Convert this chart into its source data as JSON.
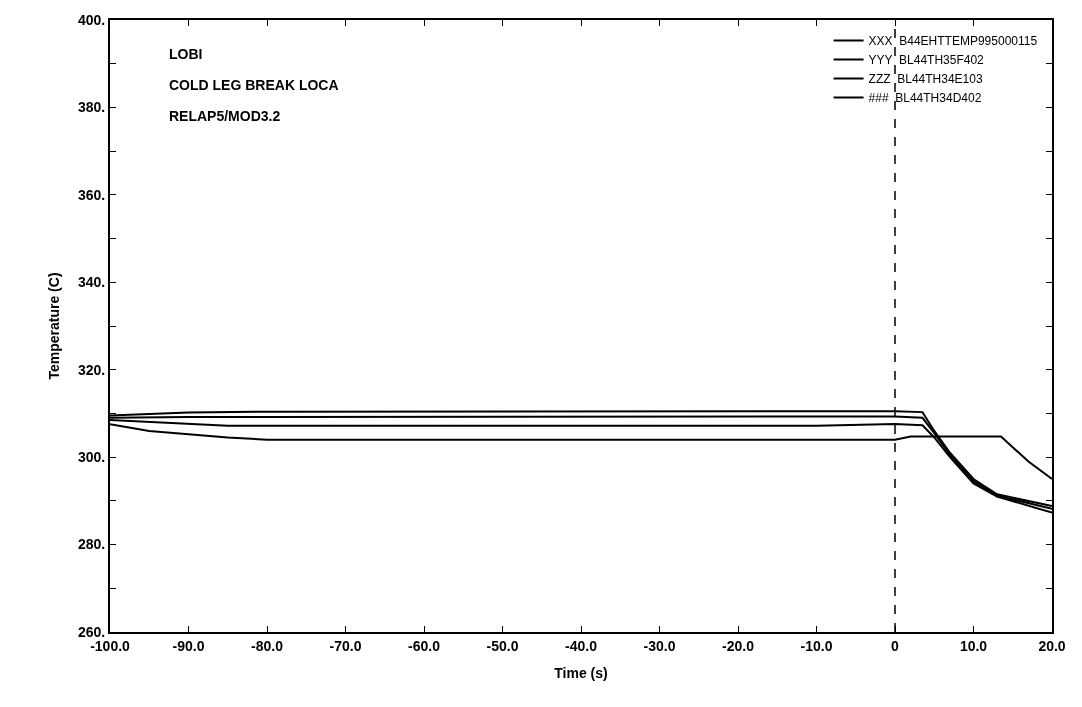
{
  "chart_data": {
    "type": "line",
    "xlabel": "Time (s)",
    "ylabel": "Temperature (C)",
    "annotations": [
      "LOBI",
      "COLD LEG BREAK LOCA",
      "RELAP5/MOD3.2"
    ],
    "series": [
      {
        "name": "XXX  B44EHTTEMP995000115",
        "color": "#000000",
        "x": [
          -100,
          -95,
          -85,
          -80,
          0,
          2,
          13.5,
          17,
          20
        ],
        "values": [
          307.5,
          306,
          304.5,
          304,
          304,
          304.7,
          304.7,
          299,
          295
        ]
      },
      {
        "name": "YYY  BL44TH35F402",
        "color": "#000000",
        "x": [
          -100,
          -85,
          -10,
          0,
          3.5,
          5,
          7,
          10,
          13,
          20
        ],
        "values": [
          308.5,
          307.2,
          307.2,
          307.6,
          307.3,
          304.5,
          300,
          294,
          291,
          287.3
        ]
      },
      {
        "name": "ZZZ  BL44TH34E103",
        "color": "#000000",
        "x": [
          -100,
          -90,
          0,
          3.5,
          5,
          7,
          10,
          13,
          20
        ],
        "values": [
          309,
          309.2,
          309.3,
          309,
          305.5,
          300.5,
          294.5,
          291.2,
          288.2
        ]
      },
      {
        "name": "###  BL44TH34D402",
        "color": "#000000",
        "x": [
          -100,
          -90,
          -80,
          0,
          3.5,
          5,
          7,
          10,
          13,
          20
        ],
        "values": [
          309.5,
          310.2,
          310.4,
          310.5,
          310.3,
          306,
          301,
          295,
          291.5,
          288.8
        ]
      }
    ],
    "ref_lines": [
      {
        "axis": "x",
        "value": 0,
        "color": "#000000",
        "line_style": "dashed"
      }
    ],
    "xlim": [
      -100,
      20
    ],
    "xticks": [
      {
        "value": -100,
        "label": "-100.0"
      },
      {
        "value": -90,
        "label": "-90.0"
      },
      {
        "value": -80,
        "label": "-80.0"
      },
      {
        "value": -70,
        "label": "-70.0"
      },
      {
        "value": -60,
        "label": "-60.0"
      },
      {
        "value": -50,
        "label": "-50.0"
      },
      {
        "value": -40,
        "label": "-40.0"
      },
      {
        "value": -30,
        "label": "-30.0"
      },
      {
        "value": -20,
        "label": "-20.0"
      },
      {
        "value": -10,
        "label": "-10.0"
      },
      0,
      {
        "value": 10,
        "label": "10.0"
      },
      {
        "value": 20,
        "label": "20.0"
      }
    ],
    "ylim": [
      260,
      400
    ],
    "yticks": [
      {
        "value": 260,
        "label": "260."
      },
      {
        "value": 270,
        "label": null
      },
      {
        "value": 280,
        "label": "280."
      },
      {
        "value": 290,
        "label": null
      },
      {
        "value": 300,
        "label": "300."
      },
      {
        "value": 310,
        "label": null
      },
      {
        "value": 320,
        "label": "320."
      },
      {
        "value": 330,
        "label": null
      },
      {
        "value": 340,
        "label": "340."
      },
      {
        "value": 350,
        "label": null
      },
      {
        "value": 360,
        "label": "360."
      },
      {
        "value": 370,
        "label": null
      },
      {
        "value": 380,
        "label": "380."
      },
      {
        "value": 390,
        "label": null
      },
      {
        "value": 400,
        "label": "400."
      }
    ],
    "legend": "top right",
    "line_style": "solid"
  }
}
